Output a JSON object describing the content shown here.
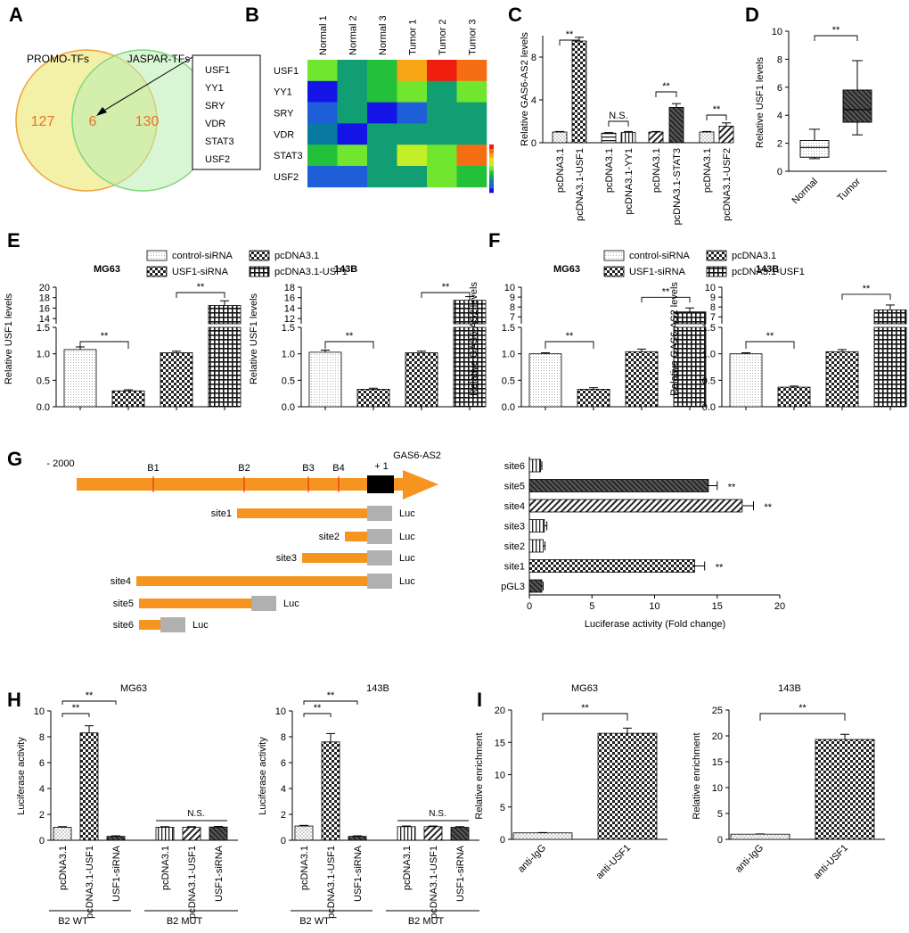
{
  "colors": {
    "orange": "#F5951F",
    "gray": "#B0B0B0",
    "venn_left_fill": "#F2EE9E",
    "venn_left_stroke": "#F0A23C",
    "venn_right_fill": "#B9EEB0",
    "venn_right_stroke": "#7FD67B",
    "venn_numbers": "#E8702A",
    "heatmap_palette": [
      "#1414E6",
      "#1E5FD9",
      "#0A7BA0",
      "#109E72",
      "#23C13A",
      "#70E62E",
      "#C4EE25",
      "#F5D813",
      "#F7A514",
      "#F66E12",
      "#F01E0E"
    ]
  },
  "panels": {
    "A": {
      "letter": "A",
      "left_label": "PROMO-TFs",
      "right_label": "JASPAR-TFs",
      "left_count": "127",
      "overlap_count": "6",
      "right_count": "130",
      "overlap_genes": [
        "USF1",
        "YY1",
        "SRY",
        "VDR",
        "STAT3",
        "USF2"
      ]
    },
    "B": {
      "letter": "B",
      "columns": [
        "Normal 1",
        "Normal 2",
        "Normal 3",
        "Tumor 1",
        "Tumor 2",
        "Tumor 3"
      ],
      "rows": [
        "USF1",
        "YY1",
        "SRY",
        "VDR",
        "STAT3",
        "USF2"
      ],
      "matrix": [
        [
          5,
          3,
          4,
          8,
          10,
          9
        ],
        [
          0,
          3,
          4,
          5,
          3,
          5
        ],
        [
          1,
          3,
          0,
          1,
          3,
          3
        ],
        [
          2,
          0,
          3,
          3,
          3,
          3
        ],
        [
          4,
          5,
          3,
          6,
          5,
          9
        ],
        [
          1,
          1,
          3,
          3,
          5,
          4
        ]
      ]
    },
    "C": {
      "letter": "C",
      "ylabel": "Relative GAS6-AS2 levels",
      "ylim": [
        0,
        10
      ],
      "yticks": [
        0,
        4,
        8
      ],
      "categories": [
        "pcDNA3.1",
        "pcDNA3.1-USF1",
        "pcDNA3.1",
        "pcDNA3.1-YY1",
        "pcDNA3.1",
        "pcDNA3.1-STAT3",
        "pcDNA3.1",
        "pcDNA3.1-USF2"
      ],
      "values": [
        1.0,
        9.5,
        0.9,
        0.95,
        1.0,
        3.3,
        1.0,
        1.55
      ],
      "errors": [
        0.05,
        0.35,
        0.05,
        0.1,
        0.05,
        0.35,
        0.05,
        0.3
      ],
      "patterns": [
        "dots",
        "check",
        "hlines",
        "vlines",
        "diag",
        "diag2",
        "dots",
        "diag"
      ],
      "significance": [
        "**",
        "N.S.",
        "**",
        "**"
      ]
    },
    "D": {
      "letter": "D",
      "ylabel": "Relative USF1 levels",
      "ylim": [
        0,
        10
      ],
      "yticks": [
        0,
        2,
        4,
        6,
        8,
        10
      ],
      "groups": [
        "Normal",
        "Tumor"
      ],
      "boxes": [
        {
          "min": 0.9,
          "q1": 1.0,
          "median": 1.7,
          "q3": 2.2,
          "max": 3.0
        },
        {
          "min": 2.6,
          "q1": 3.5,
          "median": 4.4,
          "q3": 5.8,
          "max": 7.9
        }
      ],
      "significance": "**"
    },
    "E": {
      "letter": "E",
      "legend": [
        "control-siRNA",
        "USF1-siRNA",
        "pcDNA3.1",
        "pcDNA3.1-USF1"
      ],
      "ylabel": "Relative USF1 levels",
      "subplots": [
        {
          "title": "MG63",
          "values": [
            1.08,
            0.3,
            1.02,
            16.5
          ],
          "errors": [
            0.05,
            0.02,
            0.03,
            0.9
          ],
          "lower_ticks": [
            "0.0",
            "0.5",
            "1.0",
            "1.5"
          ],
          "upper_ticks": [
            "14",
            "16",
            "18",
            "20"
          ],
          "upper_range": [
            13,
            20
          ]
        },
        {
          "title": "143B",
          "values": [
            1.03,
            0.33,
            1.02,
            15.5
          ],
          "errors": [
            0.04,
            0.02,
            0.03,
            0.7
          ],
          "lower_ticks": [
            "0.0",
            "0.5",
            "1.0",
            "1.5"
          ],
          "upper_ticks": [
            "12",
            "14",
            "16",
            "18"
          ],
          "upper_range": [
            11,
            18
          ]
        }
      ]
    },
    "F": {
      "letter": "F",
      "legend": [
        "control-siRNA",
        "USF1-siRNA",
        "pcDNA3.1",
        "pcDNA3.1-USF1"
      ],
      "ylabel": "Relative GAS6-AS2 levels",
      "subplots": [
        {
          "title": "MG63",
          "values": [
            1.0,
            0.33,
            1.04,
            7.5
          ],
          "errors": [
            0.02,
            0.03,
            0.05,
            0.4
          ],
          "lower_ticks": [
            "0.0",
            "0.5",
            "1.0",
            "1.5"
          ],
          "upper_ticks": [
            "7",
            "8",
            "9",
            "10"
          ],
          "upper_range": [
            6.3,
            10
          ]
        },
        {
          "title": "143B",
          "values": [
            1.0,
            0.37,
            1.04,
            7.7
          ],
          "errors": [
            0.02,
            0.02,
            0.04,
            0.5
          ],
          "lower_ticks": [
            "0.0",
            "0.5",
            "1.0",
            "1.5"
          ],
          "upper_ticks": [
            "7",
            "8",
            "9",
            "10"
          ],
          "upper_range": [
            6.3,
            10
          ]
        }
      ]
    },
    "G": {
      "letter": "G",
      "promoter_start": "- 2000",
      "gene": "GAS6-AS2",
      "tss": "+ 1",
      "sites": [
        "B1",
        "B2",
        "B3",
        "B4"
      ],
      "constructs": [
        "site1",
        "site2",
        "site3",
        "site4",
        "site5",
        "site6"
      ],
      "luc": "Luc",
      "bar_labels": [
        "site6",
        "site5",
        "site4",
        "site3",
        "site2",
        "site1",
        "pGL3"
      ],
      "bar_values": [
        0.9,
        14.3,
        17.0,
        1.2,
        1.1,
        13.2,
        1.0
      ],
      "bar_errors": [
        0.1,
        0.7,
        0.9,
        0.2,
        0.15,
        0.8,
        0.1
      ],
      "bar_sig": [
        "",
        "**",
        "**",
        "",
        "",
        "**",
        ""
      ],
      "xlabel": "Luciferase activity (Fold change)",
      "xlim": [
        0,
        20
      ],
      "xticks": [
        0,
        5,
        10,
        15,
        20
      ]
    },
    "H": {
      "letter": "H",
      "ylabel": "Luciferase activity",
      "ylim": [
        0,
        10
      ],
      "yticks": [
        0,
        2,
        4,
        6,
        8,
        10
      ],
      "categories": [
        "pcDNA3.1",
        "pcDNA3.1-USF1",
        "USF1-siRNA",
        "pcDNA3.1",
        "pcDNA3.1-USF1",
        "USF1-siRNA"
      ],
      "group_labels": [
        "B2 WT",
        "B2 MUT"
      ],
      "subplots": [
        {
          "title": "MG63",
          "values": [
            1.0,
            8.3,
            0.3,
            1.0,
            1.0,
            1.02
          ],
          "errors": [
            0.05,
            0.55,
            0.04,
            0.05,
            0.05,
            0.05
          ]
        },
        {
          "title": "143B",
          "values": [
            1.1,
            7.6,
            0.3,
            1.05,
            1.05,
            1.0
          ],
          "errors": [
            0.05,
            0.65,
            0.04,
            0.05,
            0.05,
            0.05
          ]
        }
      ],
      "sig_labels": [
        "**",
        "**",
        "N.S."
      ]
    },
    "I": {
      "letter": "I",
      "ylabel": "Relative enrichment",
      "categories": [
        "anti-IgG",
        "anti-USF1"
      ],
      "subplots": [
        {
          "title": "MG63",
          "values": [
            1.0,
            16.4
          ],
          "errors": [
            0.05,
            0.8
          ],
          "ylim": [
            0,
            20
          ],
          "yticks": [
            0,
            5,
            10,
            15,
            20
          ]
        },
        {
          "title": "143B",
          "values": [
            1.0,
            19.3
          ],
          "errors": [
            0.05,
            1.0
          ],
          "ylim": [
            0,
            25
          ],
          "yticks": [
            0,
            5,
            10,
            15,
            20,
            25
          ]
        }
      ],
      "significance": "**"
    }
  },
  "chart_data": [
    {
      "type": "bar",
      "title": "C",
      "categories": [
        "pcDNA3.1",
        "pcDNA3.1-USF1",
        "pcDNA3.1",
        "pcDNA3.1-YY1",
        "pcDNA3.1",
        "pcDNA3.1-STAT3",
        "pcDNA3.1",
        "pcDNA3.1-USF2"
      ],
      "values": [
        1.0,
        9.5,
        0.9,
        0.95,
        1.0,
        3.3,
        1.0,
        1.55
      ],
      "ylabel": "Relative GAS6-AS2 levels",
      "ylim": [
        0,
        10
      ]
    },
    {
      "type": "box",
      "title": "D",
      "categories": [
        "Normal",
        "Tumor"
      ],
      "ylabel": "Relative USF1 levels",
      "ylim": [
        0,
        10
      ]
    },
    {
      "type": "bar",
      "title": "E MG63",
      "categories": [
        "control-siRNA",
        "USF1-siRNA",
        "pcDNA3.1",
        "pcDNA3.1-USF1"
      ],
      "values": [
        1.08,
        0.3,
        1.02,
        16.5
      ],
      "ylabel": "Relative USF1 levels"
    },
    {
      "type": "bar",
      "title": "E 143B",
      "categories": [
        "control-siRNA",
        "USF1-siRNA",
        "pcDNA3.1",
        "pcDNA3.1-USF1"
      ],
      "values": [
        1.03,
        0.33,
        1.02,
        15.5
      ],
      "ylabel": "Relative USF1 levels"
    },
    {
      "type": "bar",
      "title": "F MG63",
      "categories": [
        "control-siRNA",
        "USF1-siRNA",
        "pcDNA3.1",
        "pcDNA3.1-USF1"
      ],
      "values": [
        1.0,
        0.33,
        1.04,
        7.5
      ],
      "ylabel": "Relative GAS6-AS2 levels"
    },
    {
      "type": "bar",
      "title": "F 143B",
      "categories": [
        "control-siRNA",
        "USF1-siRNA",
        "pcDNA3.1",
        "pcDNA3.1-USF1"
      ],
      "values": [
        1.0,
        0.37,
        1.04,
        7.7
      ],
      "ylabel": "Relative GAS6-AS2 levels"
    },
    {
      "type": "bar",
      "title": "G",
      "categories": [
        "site6",
        "site5",
        "site4",
        "site3",
        "site2",
        "site1",
        "pGL3"
      ],
      "values": [
        0.9,
        14.3,
        17.0,
        1.2,
        1.1,
        13.2,
        1.0
      ],
      "xlabel": "Luciferase activity (Fold change)",
      "xlim": [
        0,
        20
      ]
    },
    {
      "type": "bar",
      "title": "H MG63",
      "categories": [
        "pcDNA3.1",
        "pcDNA3.1-USF1",
        "USF1-siRNA",
        "pcDNA3.1",
        "pcDNA3.1-USF1",
        "USF1-siRNA"
      ],
      "values": [
        1.0,
        8.3,
        0.3,
        1.0,
        1.0,
        1.02
      ],
      "ylabel": "Luciferase activity",
      "ylim": [
        0,
        10
      ]
    },
    {
      "type": "bar",
      "title": "H 143B",
      "categories": [
        "pcDNA3.1",
        "pcDNA3.1-USF1",
        "USF1-siRNA",
        "pcDNA3.1",
        "pcDNA3.1-USF1",
        "USF1-siRNA"
      ],
      "values": [
        1.1,
        7.6,
        0.3,
        1.05,
        1.05,
        1.0
      ],
      "ylabel": "Luciferase activity",
      "ylim": [
        0,
        10
      ]
    },
    {
      "type": "bar",
      "title": "I MG63",
      "categories": [
        "anti-IgG",
        "anti-USF1"
      ],
      "values": [
        1.0,
        16.4
      ],
      "ylabel": "Relative enrichment",
      "ylim": [
        0,
        20
      ]
    },
    {
      "type": "bar",
      "title": "I 143B",
      "categories": [
        "anti-IgG",
        "anti-USF1"
      ],
      "values": [
        1.0,
        19.3
      ],
      "ylabel": "Relative enrichment",
      "ylim": [
        0,
        25
      ]
    }
  ]
}
